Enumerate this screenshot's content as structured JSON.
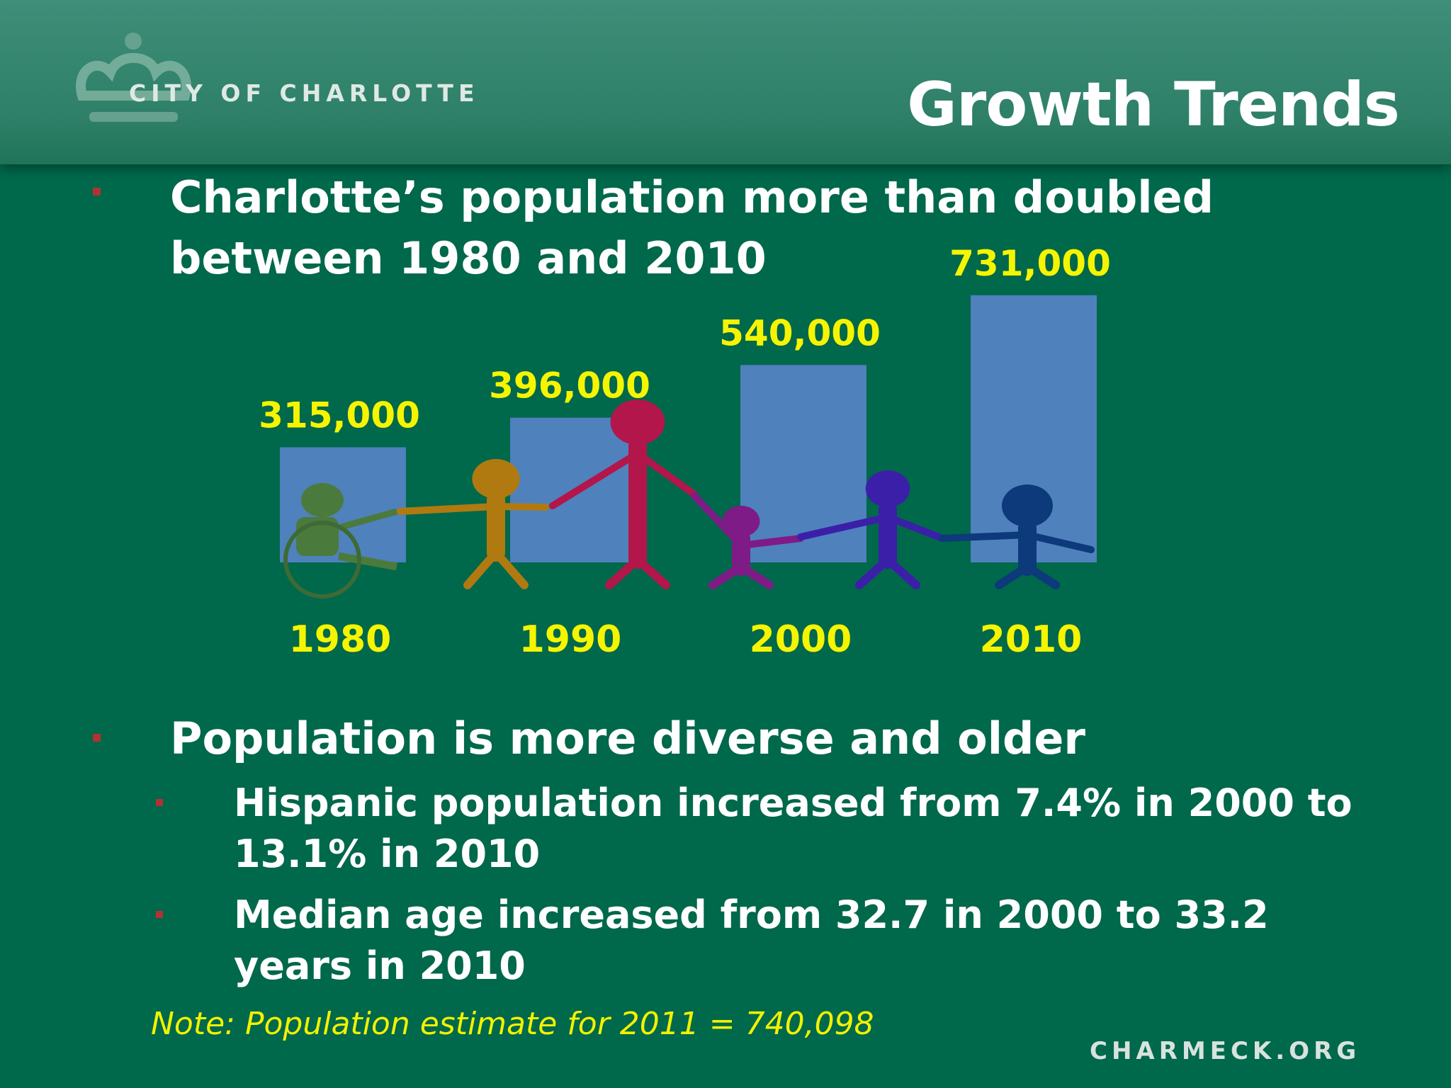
{
  "header": {
    "logo_text": "CITY OF CHARLOTTE",
    "title": "Growth Trends"
  },
  "bullets": {
    "b1": "Charlotte’s population more than doubled between 1980 and 2010",
    "b2": "Population is more diverse and older",
    "s1": "Hispanic population increased from 7.4% in 2000 to 13.1% in 2010",
    "s2": "Median age increased from 32.7 in 2000 to 33.2 years in 2010"
  },
  "note": "Note:  Population estimate for 2011 = 740,098",
  "footer": "CHARMECK.ORG",
  "colors": {
    "background": "#00684b",
    "bar": "#4f81bd",
    "label_yellow": "#f5f500",
    "bullet": "#b23232"
  },
  "chart_data": {
    "type": "bar",
    "categories": [
      "1980",
      "1990",
      "2000",
      "2010"
    ],
    "values": [
      315000,
      396000,
      540000,
      731000
    ],
    "value_labels": [
      "315,000",
      "396,000",
      "540,000",
      "731,000"
    ],
    "grid": false
  },
  "decorations": {
    "figures": [
      "wheelchair-figure-icon",
      "child-figure-icon",
      "adult-figure-icon",
      "small-child-figure-icon",
      "child-figure-icon",
      "child-figure-icon"
    ]
  }
}
